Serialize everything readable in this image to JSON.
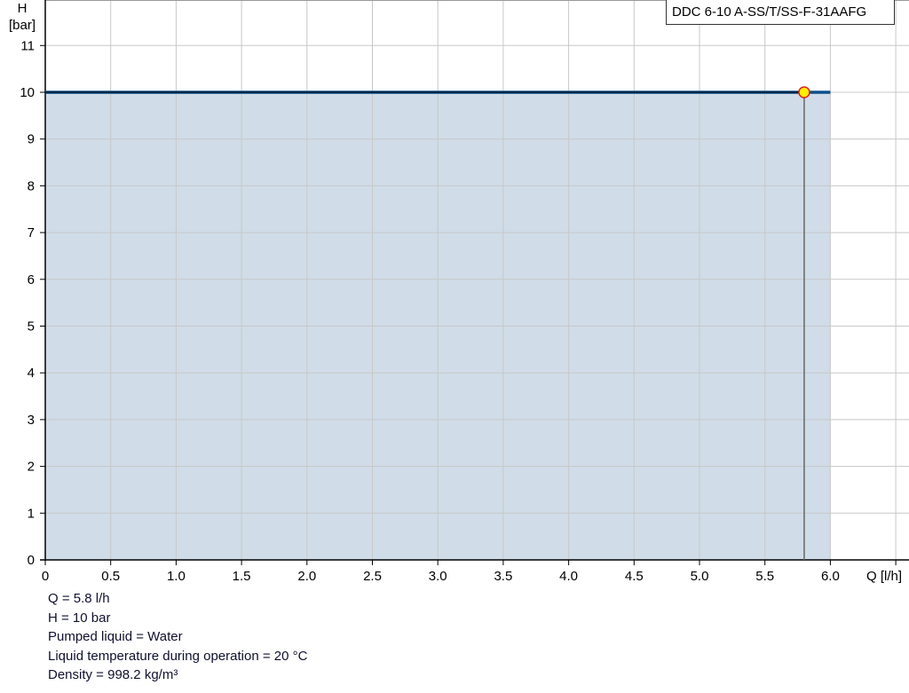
{
  "chart_data": {
    "type": "area",
    "title": "",
    "legend": "DDC 6-10 A-SS/T/SS-F-31AAFG",
    "legend_placement": "top-right",
    "xlabel": "Q [l/h]",
    "ylabel": "H\n[bar]",
    "ylabel_lines": [
      "H",
      "[bar]"
    ],
    "xlim": [
      0,
      6.5
    ],
    "ylim": [
      0,
      12
    ],
    "grid": true,
    "x_ticks": [
      "0",
      "0.5",
      "1.0",
      "1.5",
      "2.0",
      "2.5",
      "3.0",
      "3.5",
      "4.0",
      "4.5",
      "5.0",
      "5.5",
      "6.0"
    ],
    "x_tick_values": [
      0,
      0.5,
      1.0,
      1.5,
      2.0,
      2.5,
      3.0,
      3.5,
      4.0,
      4.5,
      5.0,
      5.5,
      6.0
    ],
    "y_ticks": [
      "0",
      "1",
      "2",
      "3",
      "4",
      "5",
      "6",
      "7",
      "8",
      "9",
      "10",
      "11"
    ],
    "y_tick_values": [
      0,
      1,
      2,
      3,
      4,
      5,
      6,
      7,
      8,
      9,
      10,
      11
    ],
    "series": [
      {
        "x": [
          0,
          6.0
        ],
        "y": [
          10,
          10
        ],
        "color": "#0b4f8a",
        "fill": "#d0dce8"
      }
    ],
    "operating_point": {
      "x": 5.8,
      "y": 10,
      "color": "#ffee00",
      "stroke": "#e02020"
    }
  },
  "info": {
    "lines": [
      "Q = 5.8 l/h",
      "H = 10 bar",
      "Pumped liquid = Water",
      "Liquid temperature during operation = 20 °C",
      "Density = 998.2 kg/m³"
    ]
  }
}
